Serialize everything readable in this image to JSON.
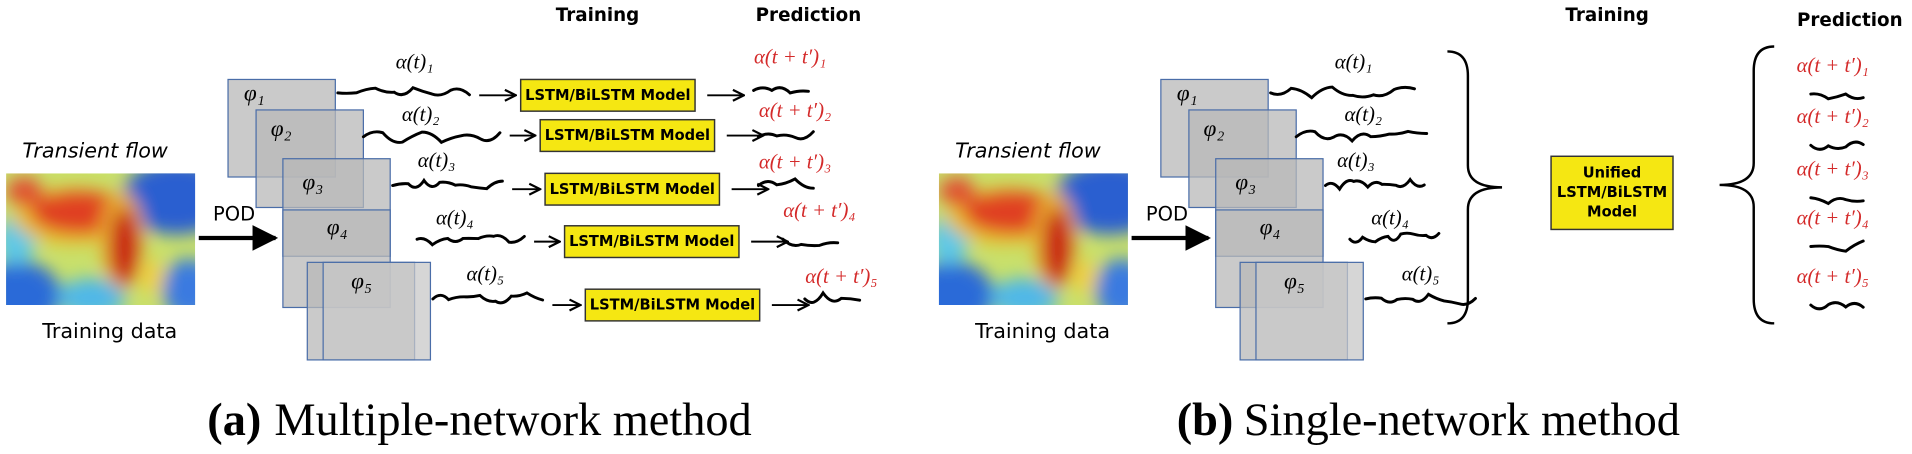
{
  "panels": [
    {
      "training_header": "Training",
      "prediction_header": "Prediction",
      "input_label": "Transient flow",
      "data_label": "Training data",
      "transform": "POD",
      "modes": [
        "φ₁",
        "φ₂",
        "φ₃",
        "φ₄",
        "φ₅"
      ],
      "coefficients": [
        "α(t)₁",
        "α(t)₂",
        "α(t)₃",
        "α(t)₄",
        "α(t)₅"
      ],
      "models": [
        "LSTM/BiLSTM Model",
        "LSTM/BiLSTM Model",
        "LSTM/BiLSTM Model",
        "LSTM/BiLSTM Model",
        "LSTM/BiLSTM Model"
      ],
      "predictions": [
        "α(t + t′)₁",
        "α(t + t′)₂",
        "α(t + t′)₃",
        "α(t + t′)₄",
        "α(t + t′)₅"
      ],
      "caption_label": "(a)",
      "caption": "Multiple-network method"
    },
    {
      "training_header": "Training",
      "prediction_header": "Prediction",
      "input_label": "Transient flow",
      "data_label": "Training data",
      "transform": "POD",
      "modes": [
        "φ₁",
        "φ₂",
        "φ₃",
        "φ₄",
        "φ₅"
      ],
      "coefficients": [
        "α(t)₁",
        "α(t)₂",
        "α(t)₃",
        "α(t)₄",
        "α(t)₅"
      ],
      "unified_model": [
        "Unified",
        "LSTM/BiLSTM",
        "Model"
      ],
      "predictions": [
        "α(t + t′)₁",
        "α(t + t′)₂",
        "α(t + t′)₃",
        "α(t + t′)₄",
        "α(t + t′)₅"
      ],
      "caption_label": "(b)",
      "caption": "Single-network method"
    }
  ]
}
